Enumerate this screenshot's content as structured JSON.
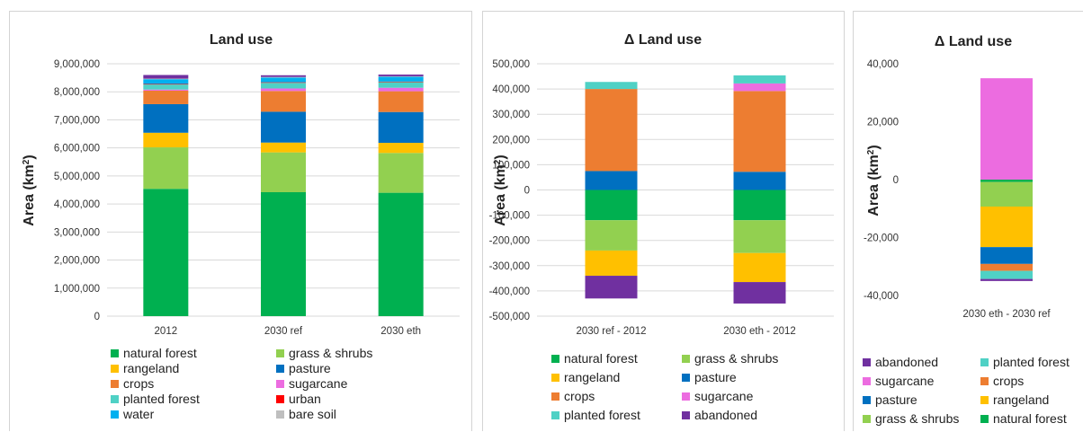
{
  "colors": {
    "natural forest": "#00b050",
    "grass & shrubs": "#92d050",
    "rangeland": "#ffc000",
    "pasture": "#0070c0",
    "crops": "#ed7d31",
    "sugarcane": "#ec6ce0",
    "planted forest": "#4fd1c5",
    "urban": "#ff0000",
    "water": "#00b0f0",
    "bare soil": "#bfbfbf",
    "abandoned": "#7030a0"
  },
  "chart_data": [
    {
      "type": "bar",
      "stacked": true,
      "title": "Land use",
      "ylabel": "Area (km²)",
      "ylabel_parts": [
        "Area (km",
        "2",
        ")"
      ],
      "ylim": [
        0,
        9000000
      ],
      "yticks": [
        "0",
        "1,000,000",
        "2,000,000",
        "3,000,000",
        "4,000,000",
        "5,000,000",
        "6,000,000",
        "7,000,000",
        "8,000,000",
        "9,000,000"
      ],
      "grid": true,
      "legend_position": "bottom",
      "categories": [
        "2012",
        "2030 ref",
        "2030 eth"
      ],
      "series": [
        {
          "name": "natural forest",
          "values": [
            4540000,
            4420000,
            4400000
          ]
        },
        {
          "name": "grass & shrubs",
          "values": [
            1480000,
            1420000,
            1420000
          ]
        },
        {
          "name": "rangeland",
          "values": [
            520000,
            350000,
            360000
          ]
        },
        {
          "name": "pasture",
          "values": [
            1020000,
            1100000,
            1100000
          ]
        },
        {
          "name": "crops",
          "values": [
            480000,
            740000,
            740000
          ]
        },
        {
          "name": "sugarcane",
          "values": [
            40000,
            90000,
            125000
          ]
        },
        {
          "name": "planted forest",
          "values": [
            180000,
            200000,
            200000
          ]
        },
        {
          "name": "urban",
          "values": [
            20000,
            20000,
            20000
          ]
        },
        {
          "name": "water",
          "values": [
            170000,
            170000,
            170000
          ]
        },
        {
          "name": "bare soil",
          "values": [
            20000,
            20000,
            20000
          ]
        },
        {
          "name": "abandoned",
          "values": [
            130000,
            60000,
            60000
          ]
        }
      ],
      "legend": [
        "natural forest",
        "grass & shrubs",
        "rangeland",
        "pasture",
        "crops",
        "sugarcane",
        "planted forest",
        "urban",
        "water",
        "bare soil"
      ]
    },
    {
      "type": "bar",
      "stacked": true,
      "title": "Δ Land use",
      "ylabel": "Area (km²)",
      "ylabel_parts": [
        "Area (km",
        "2",
        ")"
      ],
      "ylim": [
        -500000,
        500000
      ],
      "yticks": [
        "-500,000",
        "-400,000",
        "-300,000",
        "-200,000",
        "-100,000",
        "0",
        "100,000",
        "200,000",
        "300,000",
        "400,000",
        "500,000"
      ],
      "grid": true,
      "legend_position": "bottom",
      "categories": [
        "2030 ref - 2012",
        "2030 eth - 2012"
      ],
      "series": [
        {
          "name": "pasture",
          "values": [
            75000,
            72000
          ]
        },
        {
          "name": "crops",
          "values": [
            325000,
            320000
          ]
        },
        {
          "name": "sugarcane",
          "values": [
            0,
            30000
          ]
        },
        {
          "name": "planted forest",
          "values": [
            28000,
            32000
          ]
        },
        {
          "name": "natural forest",
          "values": [
            -120000,
            -120000
          ]
        },
        {
          "name": "grass & shrubs",
          "values": [
            -120000,
            -130000
          ]
        },
        {
          "name": "rangeland",
          "values": [
            -100000,
            -115000
          ]
        },
        {
          "name": "abandoned",
          "values": [
            -90000,
            -85000
          ]
        }
      ],
      "legend": [
        "natural forest",
        "grass & shrubs",
        "rangeland",
        "pasture",
        "crops",
        "sugarcane",
        "planted forest",
        "abandoned"
      ]
    },
    {
      "type": "bar",
      "stacked": true,
      "title": "Δ Land use",
      "ylabel": "Area (km²)",
      "ylabel_parts": [
        "Area (km",
        "2",
        ")"
      ],
      "ylim": [
        -40000,
        40000
      ],
      "yticks": [
        "-40,000",
        "-20,000",
        "0",
        "20,000",
        "40,000"
      ],
      "grid": false,
      "legend_position": "bottom",
      "categories": [
        "2030 eth - 2030 ref"
      ],
      "series": [
        {
          "name": "sugarcane",
          "values": [
            35000
          ]
        },
        {
          "name": "natural forest",
          "values": [
            -800
          ]
        },
        {
          "name": "grass & shrubs",
          "values": [
            -8500
          ]
        },
        {
          "name": "rangeland",
          "values": [
            -14000
          ]
        },
        {
          "name": "pasture",
          "values": [
            -5800
          ]
        },
        {
          "name": "crops",
          "values": [
            -2400
          ]
        },
        {
          "name": "planted forest",
          "values": [
            -2800
          ]
        },
        {
          "name": "abandoned",
          "values": [
            -700
          ]
        }
      ],
      "legend": [
        "abandoned",
        "planted forest",
        "sugarcane",
        "crops",
        "pasture",
        "rangeland",
        "grass & shrubs",
        "natural forest"
      ]
    }
  ]
}
